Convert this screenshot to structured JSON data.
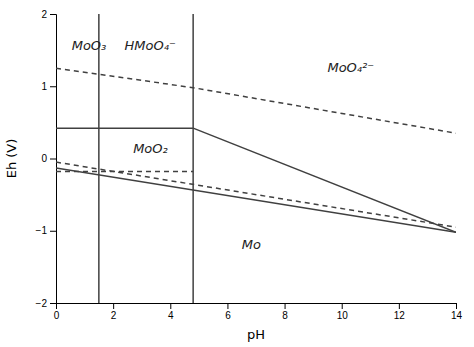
{
  "chart_data": {
    "type": "line",
    "xlabel": "pH",
    "ylabel": "Eh (V)",
    "xlim": [
      0,
      14
    ],
    "ylim": [
      -2,
      2
    ],
    "xticks": [
      0,
      2,
      4,
      6,
      8,
      10,
      12,
      14
    ],
    "yticks": [
      -2,
      -1,
      0,
      1,
      2
    ],
    "color": "#404040",
    "vlines": [
      1.5,
      4.8
    ],
    "series": [
      {
        "x": [
          0,
          4.8
        ],
        "values": [
          0.42,
          0.42
        ],
        "line_style": "solid"
      },
      {
        "x": [
          4.8,
          14
        ],
        "values": [
          0.42,
          -1.02
        ],
        "line_style": "solid"
      },
      {
        "x": [
          0,
          14
        ],
        "values": [
          -0.13,
          -1.02
        ],
        "line_style": "solid"
      },
      {
        "x": [
          0,
          4.8,
          14
        ],
        "values": [
          1.25,
          0.98,
          0.35
        ],
        "line_style": "dashed"
      },
      {
        "x": [
          0,
          14
        ],
        "values": [
          -0.05,
          -0.95
        ],
        "line_style": "dashed"
      },
      {
        "x": [
          0,
          4.8
        ],
        "values": [
          -0.18,
          -0.18
        ],
        "line_style": "dashed"
      }
    ],
    "annotations": [
      {
        "text": "MoO₃",
        "x": 0.55,
        "y": 1.55
      },
      {
        "text": "HMoO₄⁻",
        "x": 2.4,
        "y": 1.55
      },
      {
        "text": "MoO₄²⁻",
        "x": 9.5,
        "y": 1.25
      },
      {
        "text": "MoO₂",
        "x": 2.7,
        "y": 0.13
      },
      {
        "text": "Mo",
        "x": 6.5,
        "y": -1.2
      }
    ]
  }
}
